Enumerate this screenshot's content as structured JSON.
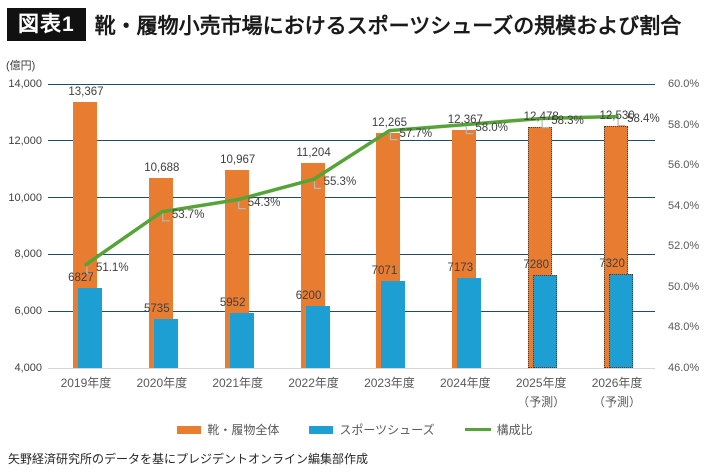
{
  "header": {
    "badge": "図表1",
    "title": "靴・履物小売市場におけるスポーツシューズの規模および割合"
  },
  "chart_data": {
    "type": "combo",
    "categories": [
      "2019年度",
      "2020年度",
      "2021年度",
      "2022年度",
      "2023年度",
      "2024年度",
      "2025年度",
      "2026年度"
    ],
    "category_sublabels": [
      "",
      "",
      "",
      "",
      "",
      "",
      "（予測）",
      "（予測）"
    ],
    "series": [
      {
        "name": "靴・履物全体",
        "type": "bar",
        "axis": "left",
        "color": "#e87d31",
        "values": [
          13367,
          10688,
          10967,
          11204,
          12265,
          12367,
          12478,
          12530
        ],
        "labels": [
          "13,367",
          "10,688",
          "10,967",
          "11,204",
          "12,265",
          "12,367",
          "12,478",
          "12,530"
        ],
        "forecast_start_index": 6
      },
      {
        "name": "スポーツシューズ",
        "type": "bar",
        "axis": "left",
        "color": "#1e9fd4",
        "values": [
          6827,
          5735,
          5952,
          6200,
          7071,
          7173,
          7280,
          7320
        ],
        "labels": [
          "6827",
          "5735",
          "5952",
          "6200",
          "7071",
          "7173",
          "7280",
          "7320"
        ],
        "forecast_start_index": 6
      },
      {
        "name": "構成比",
        "type": "line",
        "axis": "right",
        "color": "#56a438",
        "values": [
          51.1,
          53.7,
          54.3,
          55.3,
          57.7,
          58.0,
          58.3,
          58.4
        ],
        "labels": [
          "51.1%",
          "53.7%",
          "54.3%",
          "55.3%",
          "57.7%",
          "58.0%",
          "58.3%",
          "58.4%"
        ]
      }
    ],
    "left_axis": {
      "title": "(億円)",
      "min": 4000,
      "max": 14000,
      "step": 2000,
      "tick_labels": [
        "14,000",
        "12,000",
        "10,000",
        "8,000",
        "6,000",
        "4,000"
      ]
    },
    "right_axis": {
      "min": 46,
      "max": 60,
      "step": 2,
      "tick_labels": [
        "60.0%",
        "58.0%",
        "56.0%",
        "54.0%",
        "52.0%",
        "50.0%",
        "48.0%",
        "46.0%"
      ]
    },
    "grid": true,
    "legend_position": "bottom",
    "legend": [
      {
        "label": "靴・履物全体",
        "color": "#e87d31",
        "shape": "bar"
      },
      {
        "label": "スポーツシューズ",
        "color": "#1e9fd4",
        "shape": "bar"
      },
      {
        "label": "構成比",
        "color": "#56a438",
        "shape": "line"
      }
    ]
  },
  "footer": {
    "source": "矢野経済研究所のデータを基にプレジデントオンライン編集部作成"
  }
}
